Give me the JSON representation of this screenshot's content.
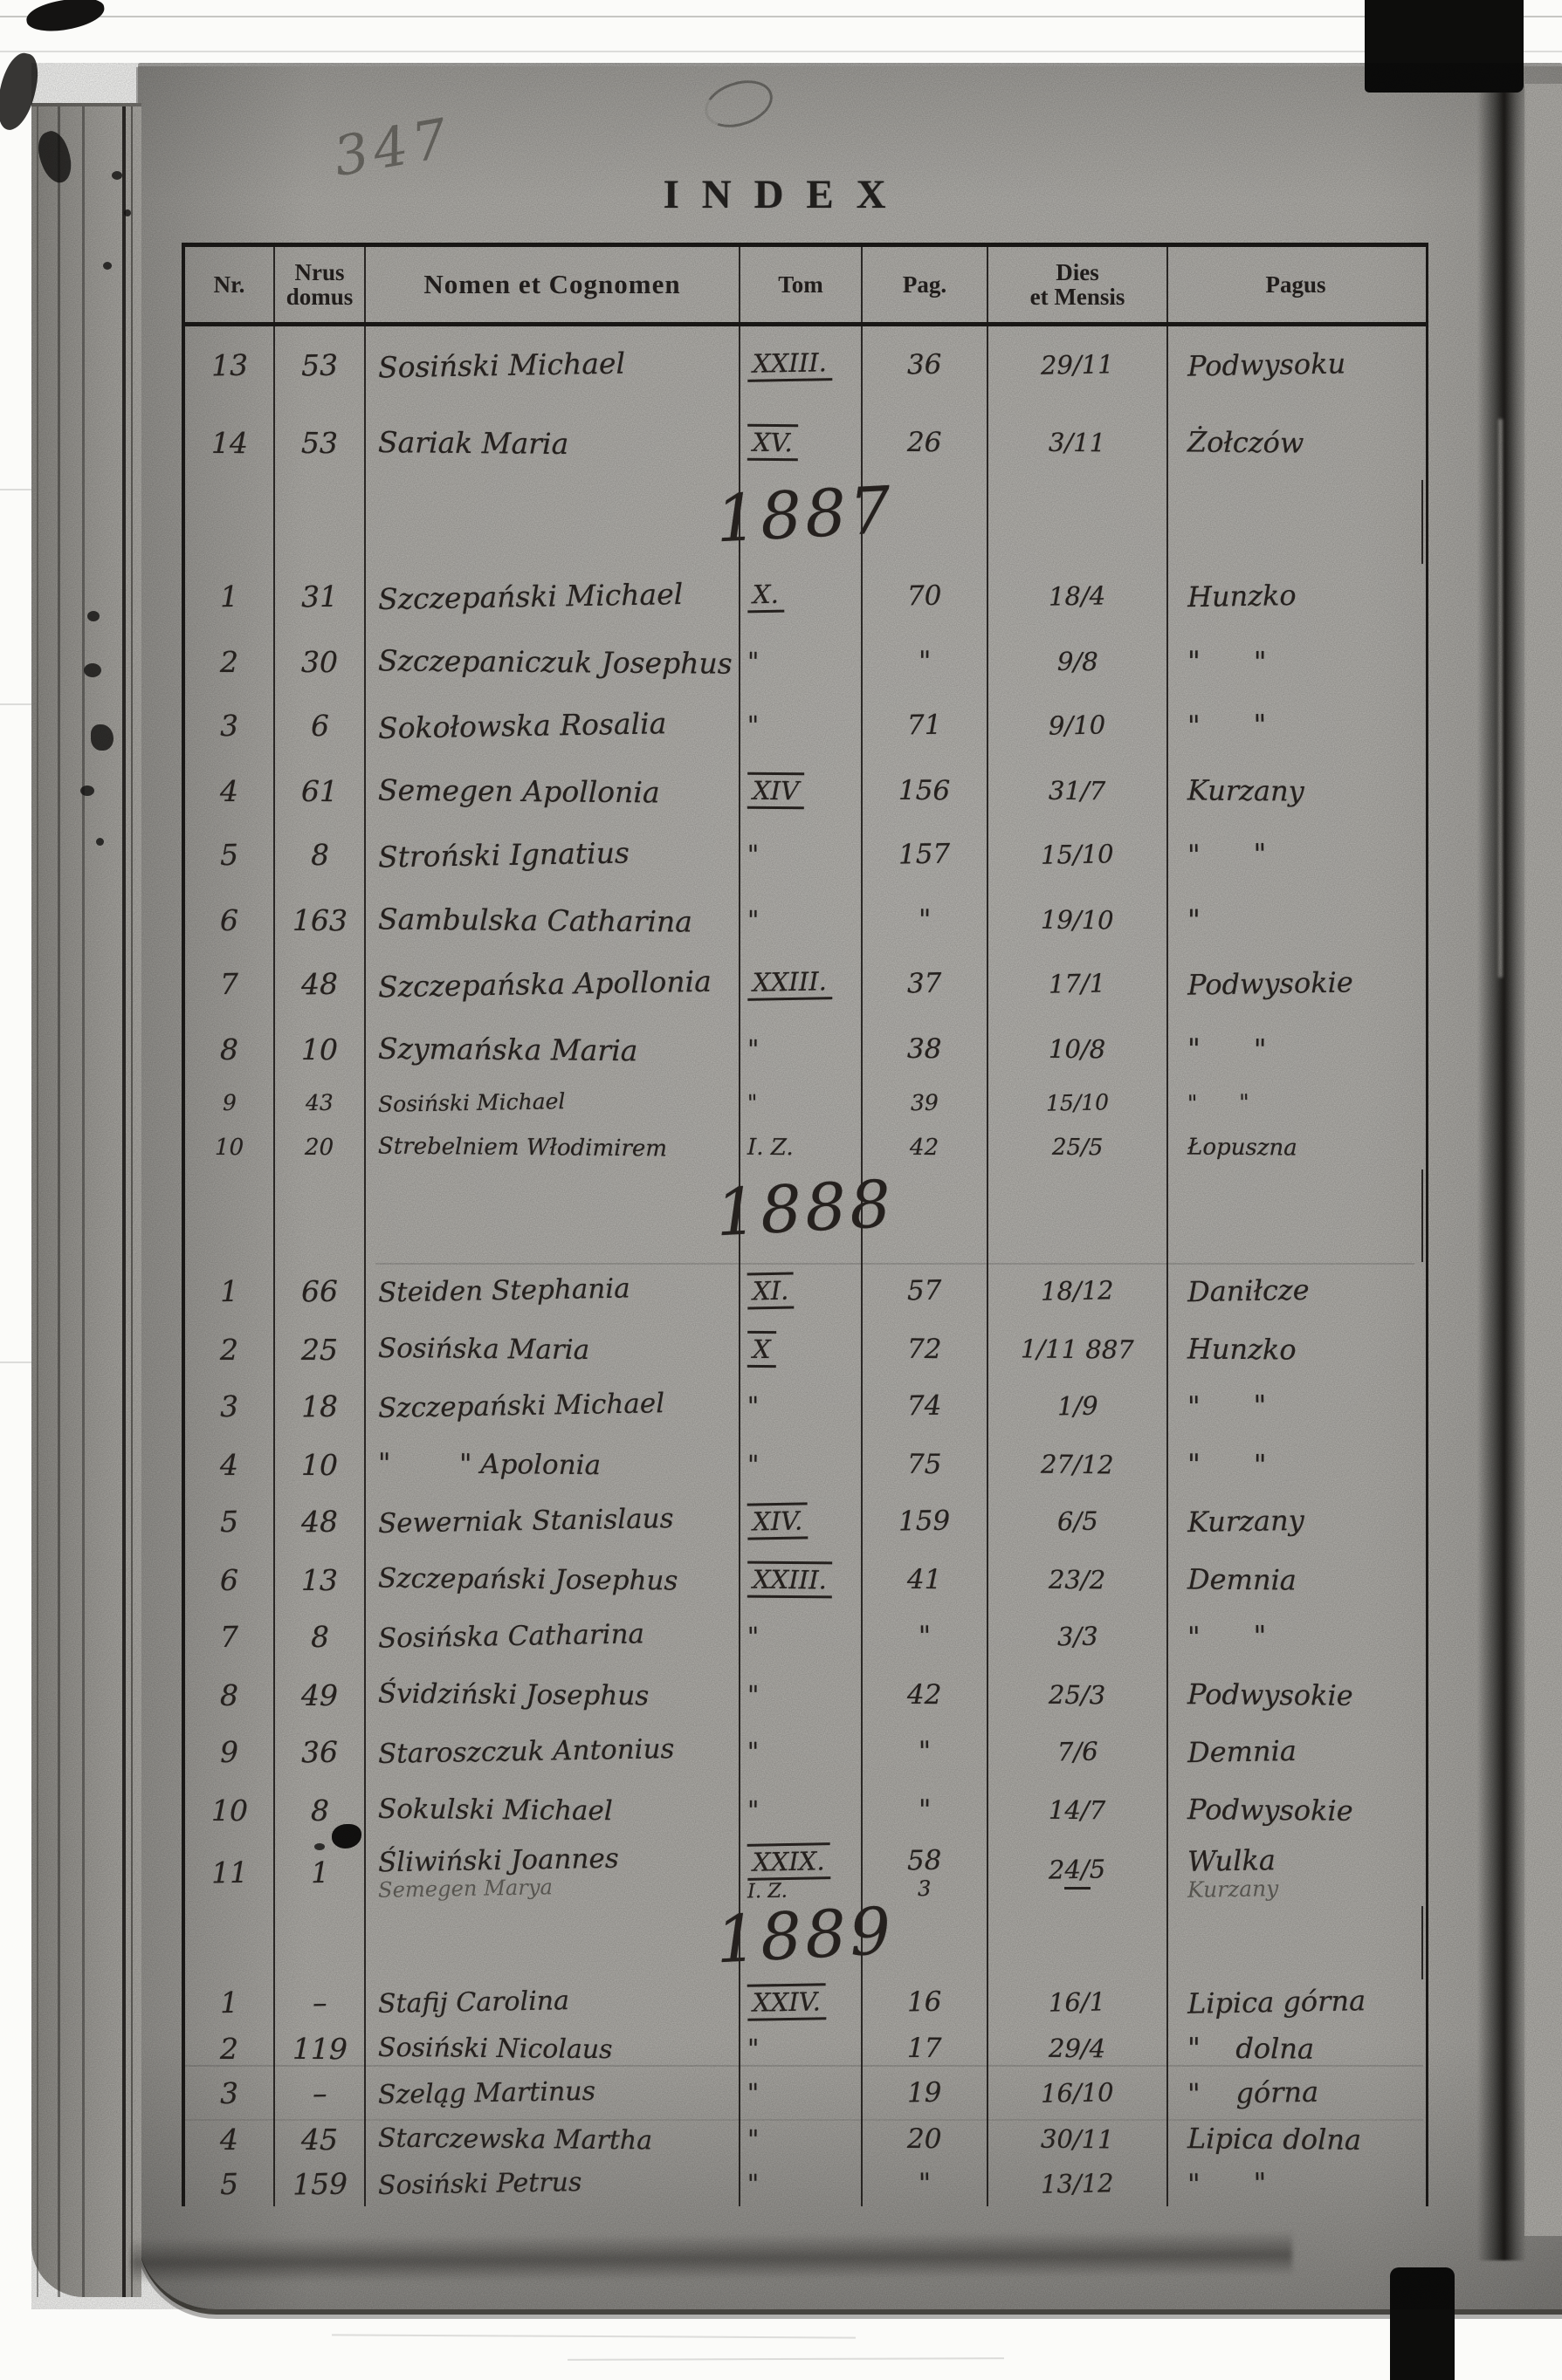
{
  "page": {
    "scan_number": "347",
    "title": "INDEX"
  },
  "table": {
    "headers": {
      "nr": "Nr.",
      "domus": "Nrus\ndomus",
      "name": "Nomen et Cognomen",
      "tom": "Tom",
      "pag": "Pag.",
      "dies": "Dies\net Mensis",
      "pagus": "Pagus"
    },
    "sections": [
      {
        "year": "",
        "rows": [
          {
            "nr": "13",
            "domus": "53",
            "name": "Sosiński Michael",
            "tom": "XXIII.",
            "deco": "u",
            "pag": "36",
            "dies": "29/11",
            "pagus": "Podwysoku"
          },
          {
            "nr": "14",
            "domus": "53",
            "name": "Sariak Maria",
            "tom": "XV.",
            "deco": "ou",
            "pag": "26",
            "dies": "3/11",
            "pagus": "Żołczów"
          }
        ]
      },
      {
        "year": "1887",
        "rows": [
          {
            "nr": "1",
            "domus": "31",
            "name": "Szczepański Michael",
            "tom": "X.",
            "deco": "u",
            "pag": "70",
            "dies": "18/4",
            "pagus": "Hunzko"
          },
          {
            "nr": "2",
            "domus": "30",
            "name": "Szczepaniczuk Josephus",
            "tom": "\"",
            "pag": "\"",
            "dies": "9/8",
            "pagus": "\"      \""
          },
          {
            "nr": "3",
            "domus": "6",
            "name": "Sokołowska Rosalia",
            "tom": "\"",
            "pag": "71",
            "dies": "9/10",
            "pagus": "\"      \""
          },
          {
            "nr": "4",
            "domus": "61",
            "name": "Semegen Apollonia",
            "tom": "XIV",
            "deco": "ou",
            "pag": "156",
            "dies": "31/7",
            "pagus": "Kurzany"
          },
          {
            "nr": "5",
            "domus": "8",
            "name": "Stroński Ignatius",
            "tom": "\"",
            "pag": "157",
            "dies": "15/10",
            "pagus": "\"      \""
          },
          {
            "nr": "6",
            "domus": "163",
            "name": "Sambulska Catharina",
            "tom": "\"",
            "pag": "\"",
            "dies": "19/10",
            "pagus": "\""
          },
          {
            "nr": "7",
            "domus": "48",
            "name": "Szczepańska Apollonia",
            "tom": "XXIII.",
            "deco": "u",
            "pag": "37",
            "dies": "17/1",
            "pagus": "Podwysokie"
          },
          {
            "nr": "8",
            "domus": "10",
            "name": "Szymańska Maria",
            "tom": "\"",
            "pag": "38",
            "dies": "10/8",
            "pagus": "\"      \""
          },
          {
            "nr": "9",
            "domus": "43",
            "name": "Sosiński Michael",
            "tom": "\"",
            "pag": "39",
            "dies": "15/10",
            "pagus": "\"      \""
          },
          {
            "nr": "10",
            "domus": "20",
            "name": "Strebelniem Włodimirem",
            "tom": "I. Z.",
            "pag": "42",
            "dies": "25/5",
            "pagus": "Łopuszna"
          }
        ]
      },
      {
        "year": "1888",
        "rows": [
          {
            "nr": "1",
            "domus": "66",
            "name": "Steiden Stephania",
            "tom": "XI.",
            "deco": "ou",
            "pag": "57",
            "dies": "18/12",
            "pagus": "Daniłcze"
          },
          {
            "nr": "2",
            "domus": "25",
            "name": "Sosińska Maria",
            "tom": "X",
            "deco": "ou",
            "pag": "72",
            "dies": "1/11 887",
            "pagus": "Hunzko"
          },
          {
            "nr": "3",
            "domus": "18",
            "name": "Szczepański Michael",
            "tom": "\"",
            "pag": "74",
            "dies": "1/9",
            "pagus": "\"      \""
          },
          {
            "nr": "4",
            "domus": "10",
            "name": "\"        \" Apolonia",
            "tom": "\"",
            "pag": "75",
            "dies": "27/12",
            "pagus": "\"      \""
          },
          {
            "nr": "5",
            "domus": "48",
            "name": "Sewerniak Stanislaus",
            "tom": "XIV.",
            "deco": "ou",
            "pag": "159",
            "dies": "6/5",
            "pagus": "Kurzany"
          },
          {
            "nr": "6",
            "domus": "13",
            "name": "Szczepański Josephus",
            "tom": "XXIII.",
            "deco": "ou",
            "pag": "41",
            "dies": "23/2",
            "pagus": "Demnia"
          },
          {
            "nr": "7",
            "domus": "8",
            "name": "Sosińska Catharina",
            "tom": "\"",
            "pag": "\"",
            "dies": "3/3",
            "pagus": "\"      \""
          },
          {
            "nr": "8",
            "domus": "49",
            "name": "Śvidziński Josephus",
            "tom": "\"",
            "pag": "42",
            "dies": "25/3",
            "pagus": "Podwysokie"
          },
          {
            "nr": "9",
            "domus": "36",
            "name": "Staroszczuk Antonius",
            "tom": "\"",
            "pag": "\"",
            "dies": "7/6",
            "pagus": "Demnia"
          },
          {
            "nr": "10",
            "domus": "8",
            "name": "Sokulski Michael",
            "tom": "\"",
            "pag": "\"",
            "dies": "14/7",
            "pagus": "Podwysokie"
          },
          {
            "nr": "11",
            "domus": "1",
            "name": "Śliwiński Joannes",
            "name2": "Semegen Marya",
            "tom": "XXIX.",
            "deco": "ou",
            "tom2": "I. Z.",
            "pag": "58",
            "pag2": "3",
            "dies": "24/5",
            "dies_dash": true,
            "pagus": "Wulka",
            "pagus2": "Kurzany"
          }
        ]
      },
      {
        "year": "1889",
        "rows": [
          {
            "nr": "1",
            "domus": "–",
            "name": "Stafij Carolina",
            "tom": "XXIV.",
            "deco": "ou",
            "pag": "16",
            "dies": "16/1",
            "pagus": "Lipica górna"
          },
          {
            "nr": "2",
            "domus": "119",
            "name": "Sosiński Nicolaus",
            "tom": "\"",
            "pag": "17",
            "dies": "29/4",
            "pagus": "\"    dolna"
          },
          {
            "nr": "3",
            "domus": "–",
            "name": "Szeląg Martinus",
            "tom": "\"",
            "pag": "19",
            "dies": "16/10",
            "pagus": "\"    górna"
          },
          {
            "nr": "4",
            "domus": "45",
            "name": "Starczewska Martha",
            "tom": "\"",
            "pag": "20",
            "dies": "30/11",
            "pagus": "Lipica dolna"
          },
          {
            "nr": "5",
            "domus": "159",
            "name": "Sosiński Petrus",
            "tom": "\"",
            "pag": "\"",
            "dies": "13/12",
            "pagus": "\"      \""
          }
        ]
      }
    ]
  }
}
